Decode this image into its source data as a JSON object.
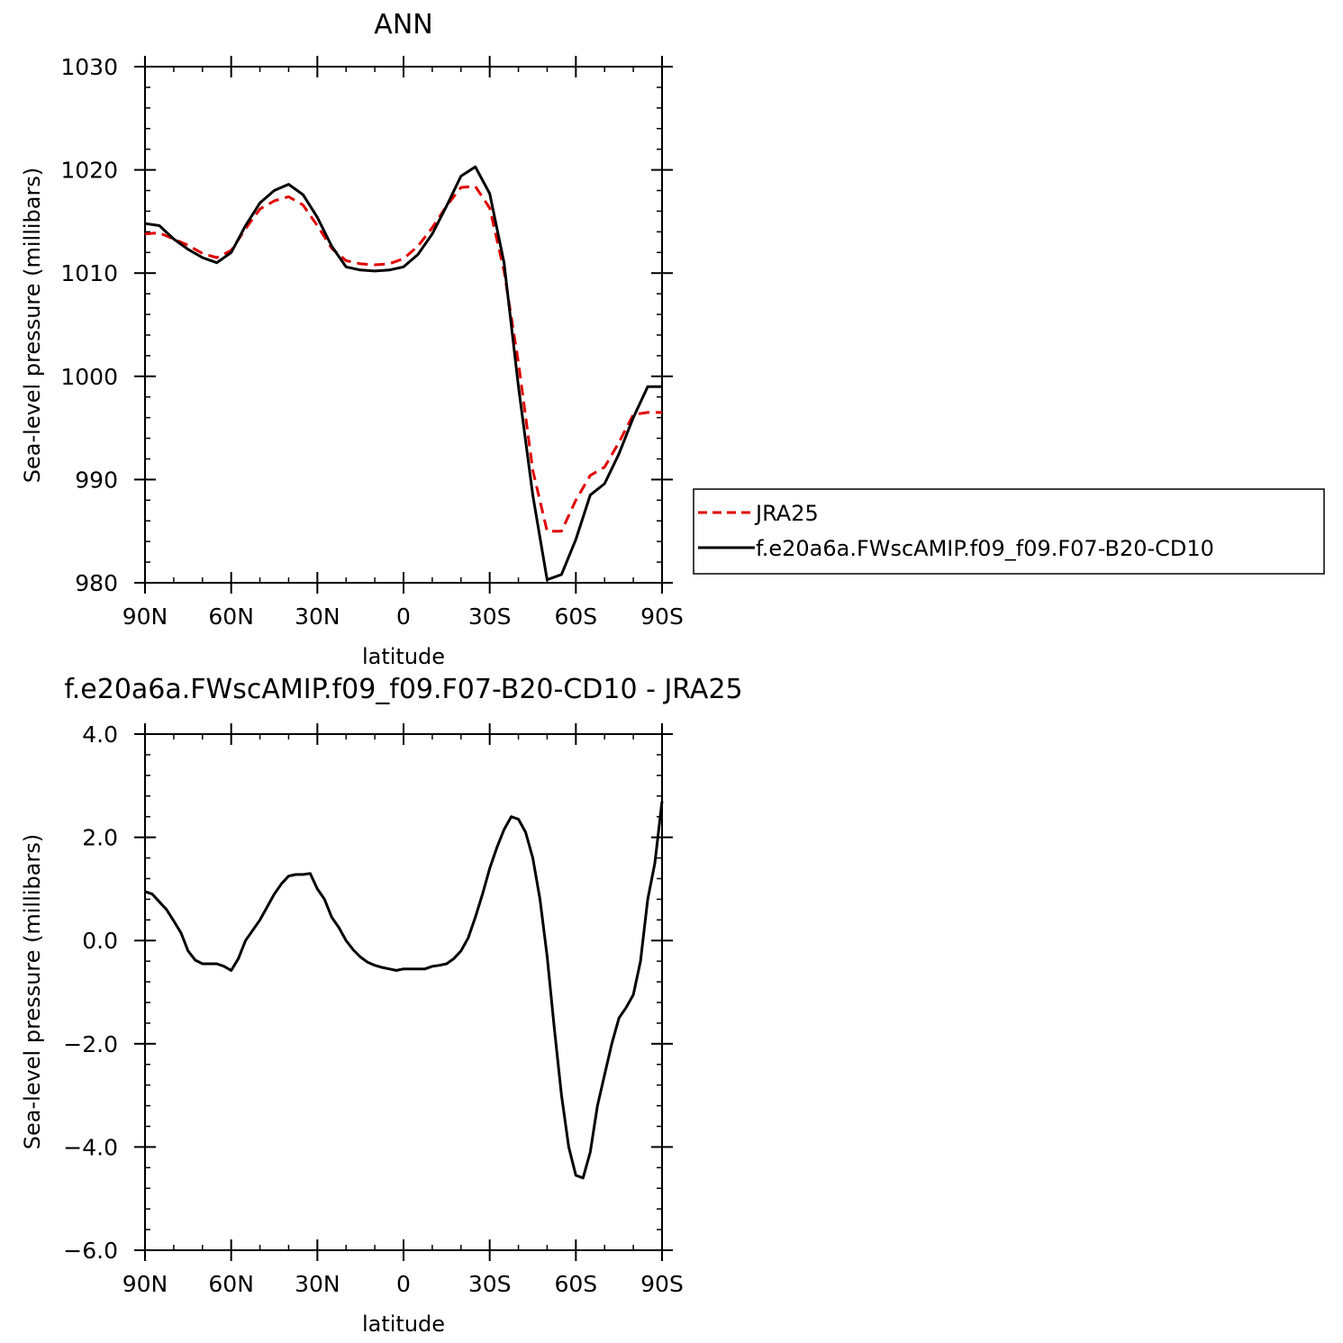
{
  "chart_data": [
    {
      "type": "line",
      "title": "ANN",
      "xlabel": "latitude",
      "ylabel": "Sea-level pressure (millibars)",
      "x_tick_labels": [
        "90N",
        "60N",
        "30N",
        "0",
        "30S",
        "60S",
        "90S"
      ],
      "x_tick_values": [
        -90,
        -60,
        -30,
        0,
        30,
        60,
        90
      ],
      "y_tick_labels": [
        "980",
        "990",
        "1000",
        "1010",
        "1020",
        "1030"
      ],
      "y_tick_values": [
        980,
        990,
        1000,
        1010,
        1020,
        1030
      ],
      "xlim": [
        -90,
        90
      ],
      "ylim": [
        980,
        1030
      ],
      "legend_position": "right",
      "series": [
        {
          "name": "JRA25",
          "color": "#e00000",
          "dash": "dashed",
          "x": [
            -90,
            -85,
            -80,
            -75,
            -70,
            -65,
            -60,
            -55,
            -50,
            -45,
            -40,
            -35,
            -30,
            -25,
            -20,
            -15,
            -10,
            -5,
            0,
            5,
            10,
            15,
            20,
            25,
            30,
            35,
            40,
            45,
            50,
            55,
            60,
            65,
            70,
            75,
            80,
            85,
            90
          ],
          "values": [
            1013.8,
            1013.9,
            1013.3,
            1012.7,
            1011.9,
            1011.5,
            1012.2,
            1014.3,
            1016.2,
            1017.0,
            1017.4,
            1016.6,
            1014.6,
            1012.4,
            1011.2,
            1010.9,
            1010.8,
            1010.9,
            1011.4,
            1012.6,
            1014.4,
            1016.5,
            1018.3,
            1018.4,
            1016.3,
            1010.2,
            1001.3,
            990.9,
            985.0,
            985.0,
            988.0,
            990.4,
            991.2,
            993.6,
            996.3,
            996.5,
            996.5
          ]
        },
        {
          "name": "f.e20a6a.FWscAMIP.f09_f09.F07-B20-CD10",
          "color": "#000000",
          "dash": "solid",
          "x": [
            -90,
            -85,
            -80,
            -75,
            -70,
            -65,
            -60,
            -55,
            -50,
            -45,
            -40,
            -35,
            -30,
            -25,
            -20,
            -15,
            -10,
            -5,
            0,
            5,
            10,
            15,
            20,
            25,
            30,
            35,
            40,
            45,
            50,
            55,
            60,
            65,
            70,
            75,
            80,
            85,
            90
          ],
          "values": [
            1014.8,
            1014.6,
            1013.3,
            1012.3,
            1011.5,
            1011.0,
            1012.0,
            1014.6,
            1016.8,
            1018.0,
            1018.6,
            1017.6,
            1015.4,
            1012.6,
            1010.6,
            1010.3,
            1010.2,
            1010.3,
            1010.6,
            1011.8,
            1013.8,
            1016.5,
            1019.4,
            1020.3,
            1017.7,
            1011.0,
            999.0,
            988.5,
            980.3,
            980.8,
            984.2,
            988.5,
            989.6,
            992.5,
            996.0,
            999.0,
            999.0
          ]
        }
      ]
    },
    {
      "type": "line",
      "title": "f.e20a6a.FWscAMIP.f09_f09.F07-B20-CD10 - JRA25",
      "xlabel": "latitude",
      "ylabel": "Sea-level pressure (millibars)",
      "x_tick_labels": [
        "90N",
        "60N",
        "30N",
        "0",
        "30S",
        "60S",
        "90S"
      ],
      "x_tick_values": [
        -90,
        -60,
        -30,
        0,
        30,
        60,
        90
      ],
      "y_tick_labels": [
        "-6.0",
        "-4.0",
        "-2.0",
        "0.0",
        "2.0",
        "4.0"
      ],
      "y_tick_values": [
        -6,
        -4,
        -2,
        0,
        2,
        4
      ],
      "xlim": [
        -90,
        90
      ],
      "ylim": [
        -6,
        4
      ],
      "series": [
        {
          "color": "#000000",
          "dash": "solid",
          "x": [
            -90,
            -87.5,
            -85,
            -82.5,
            -80,
            -77.5,
            -75,
            -72.5,
            -70,
            -65,
            -62.5,
            -60,
            -57.5,
            -55,
            -50,
            -45,
            -42.5,
            -40,
            -37.5,
            -35,
            -32.5,
            -30,
            -27.5,
            -25,
            -22.5,
            -20,
            -17.5,
            -15,
            -12.5,
            -10,
            -7.5,
            -5,
            -2.5,
            0,
            2.5,
            5,
            7.5,
            10,
            12.5,
            15,
            17.5,
            20,
            22.5,
            25,
            27.5,
            30,
            32.5,
            35,
            37.5,
            40,
            42.5,
            45,
            47.5,
            50,
            52.5,
            55,
            57.5,
            60,
            62.5,
            65,
            67.5,
            70,
            72.5,
            75,
            77.5,
            80,
            82.5,
            85,
            87.5,
            90
          ],
          "values": [
            0.95,
            0.9,
            0.75,
            0.6,
            0.38,
            0.15,
            -0.2,
            -0.38,
            -0.45,
            -0.45,
            -0.5,
            -0.58,
            -0.35,
            0.0,
            0.4,
            0.9,
            1.1,
            1.25,
            1.28,
            1.28,
            1.3,
            1.0,
            0.8,
            0.45,
            0.25,
            0.0,
            -0.18,
            -0.32,
            -0.42,
            -0.48,
            -0.52,
            -0.55,
            -0.58,
            -0.55,
            -0.55,
            -0.55,
            -0.55,
            -0.5,
            -0.48,
            -0.45,
            -0.35,
            -0.2,
            0.05,
            0.45,
            0.9,
            1.4,
            1.8,
            2.15,
            2.4,
            2.35,
            2.1,
            1.6,
            0.8,
            -0.3,
            -1.7,
            -3.0,
            -4.0,
            -4.55,
            -4.6,
            -4.1,
            -3.2,
            -2.6,
            -2.0,
            -1.5,
            -1.3,
            -1.05,
            -0.4,
            0.8,
            1.5,
            2.7
          ]
        }
      ]
    }
  ]
}
